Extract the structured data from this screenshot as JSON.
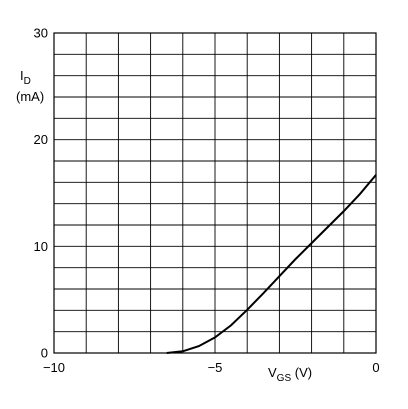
{
  "chart_data": {
    "type": "line",
    "title": "",
    "xlabel": {
      "main": "V",
      "sub": "GS",
      "unit": " (V)"
    },
    "ylabel": {
      "main": "I",
      "sub": "D",
      "unit": "(mA)"
    },
    "xlim": [
      -10,
      0
    ],
    "ylim": [
      0,
      30
    ],
    "x_ticks": [
      {
        "value": -10,
        "label": "−10"
      },
      {
        "value": -5,
        "label": "−5"
      },
      {
        "value": 0,
        "label": "0"
      }
    ],
    "y_ticks": [
      {
        "value": 0,
        "label": "0"
      },
      {
        "value": 10,
        "label": "10"
      },
      {
        "value": 20,
        "label": "20"
      },
      {
        "value": 30,
        "label": "30"
      }
    ],
    "grid": true,
    "x_grid_step": 1,
    "y_grid_step": 2,
    "line_color": "#000000",
    "series": [
      {
        "x": [
          -6.5,
          -6.0,
          -5.5,
          -5.0,
          -4.5,
          -4.0,
          -3.5,
          -3.0,
          -2.5,
          -2.0,
          -1.5,
          -1.0,
          -0.5,
          0.0
        ],
        "y": [
          0.0,
          0.16,
          0.65,
          1.46,
          2.6,
          4.05,
          5.6,
          7.2,
          8.8,
          10.3,
          11.8,
          13.3,
          14.9,
          16.7
        ]
      }
    ]
  }
}
